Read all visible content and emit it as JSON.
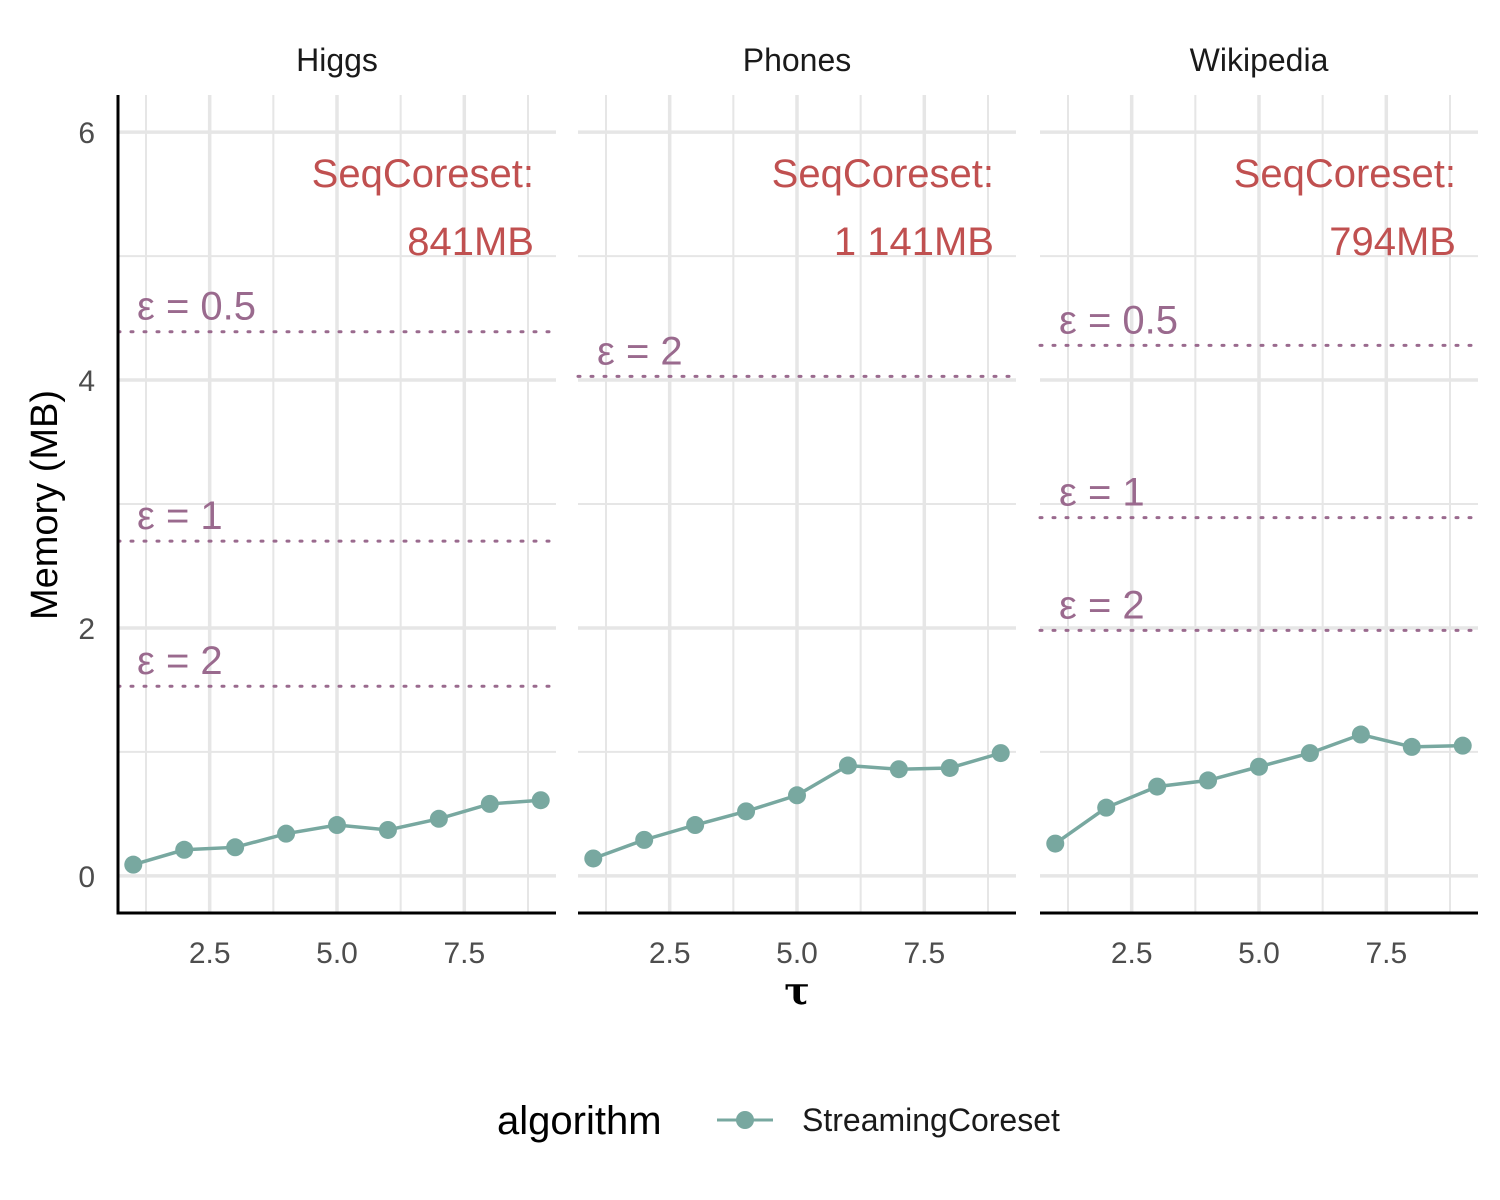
{
  "chart_data": {
    "type": "line",
    "ylabel": "Memory (MB)",
    "xlabel": "τ",
    "xlim": [
      0.7,
      9.3
    ],
    "ylim": [
      -0.3,
      6.3
    ],
    "x_ticks": [
      "2.5",
      "5.0",
      "7.5"
    ],
    "x_tick_values": [
      2.5,
      5.0,
      7.5
    ],
    "y_ticks": [
      "0",
      "2",
      "4",
      "6"
    ],
    "y_tick_values": [
      0,
      2,
      4,
      6
    ],
    "grid": true,
    "legend": {
      "title": "algorithm",
      "position": "bottom",
      "entries": [
        "StreamingCoreset"
      ]
    },
    "colors": {
      "series": "#78a8a0",
      "seq_annotation": "#c05050",
      "epsilon": "#9a6a8e",
      "grid": "#e6e6e6",
      "axis": "#000000"
    },
    "panels": [
      {
        "title": "Higgs",
        "seq_label": [
          "SeqCoreset:",
          "841MB"
        ],
        "epsilon_lines": [
          {
            "label": "ε = 0.5",
            "y": 4.39
          },
          {
            "label": "ε = 1",
            "y": 2.7
          },
          {
            "label": "ε = 2",
            "y": 1.53
          }
        ],
        "series": [
          {
            "name": "StreamingCoreset",
            "x": [
              1,
              2,
              3,
              4,
              5,
              6,
              7,
              8,
              9
            ],
            "y": [
              0.09,
              0.21,
              0.23,
              0.34,
              0.41,
              0.37,
              0.46,
              0.58,
              0.61
            ]
          }
        ]
      },
      {
        "title": "Phones",
        "seq_label": [
          "SeqCoreset:",
          "1 141MB"
        ],
        "epsilon_lines": [
          {
            "label": "ε = 2",
            "y": 4.03
          }
        ],
        "series": [
          {
            "name": "StreamingCoreset",
            "x": [
              1,
              2,
              3,
              4,
              5,
              6,
              7,
              8,
              9
            ],
            "y": [
              0.14,
              0.29,
              0.41,
              0.52,
              0.65,
              0.89,
              0.86,
              0.87,
              0.99
            ]
          }
        ]
      },
      {
        "title": "Wikipedia",
        "seq_label": [
          "SeqCoreset:",
          "794MB"
        ],
        "epsilon_lines": [
          {
            "label": "ε = 0.5",
            "y": 4.28
          },
          {
            "label": "ε = 1",
            "y": 2.89
          },
          {
            "label": "ε = 2",
            "y": 1.98
          }
        ],
        "series": [
          {
            "name": "StreamingCoreset",
            "x": [
              1,
              2,
              3,
              4,
              5,
              6,
              7,
              8,
              9
            ],
            "y": [
              0.26,
              0.55,
              0.72,
              0.77,
              0.88,
              0.99,
              1.14,
              1.04,
              1.05
            ]
          }
        ]
      }
    ]
  }
}
